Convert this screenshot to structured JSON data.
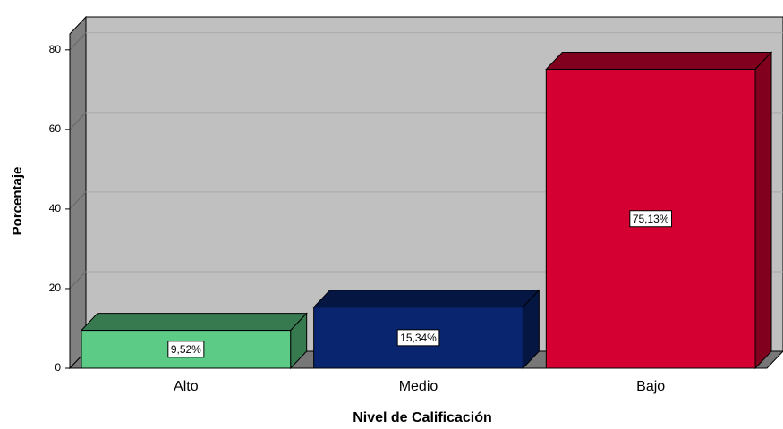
{
  "chart_data": {
    "type": "bar3d",
    "categories": [
      "Alto",
      "Medio",
      "Bajo"
    ],
    "values": [
      9.52,
      15.34,
      75.13
    ],
    "value_labels": [
      "9,52%",
      "15,34%",
      "75,13%"
    ],
    "colors": [
      "#5ccb86",
      "#0a2570",
      "#d50032"
    ],
    "ylabel": "Porcentaje",
    "xlabel": "Nivel de Calificación",
    "ylim": [
      0,
      84
    ],
    "yticks": [
      0,
      20,
      40,
      60,
      80
    ],
    "grid": true
  }
}
